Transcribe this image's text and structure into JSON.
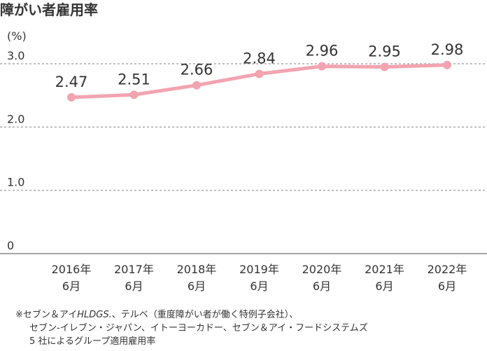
{
  "chart_data": {
    "type": "line",
    "title": "障がい者雇用率",
    "ylabel": "(%)",
    "ylim": [
      0,
      3.0
    ],
    "yticks": [
      {
        "value": 0,
        "label": "0"
      },
      {
        "value": 1.0,
        "label": "1.0"
      },
      {
        "value": 2.0,
        "label": "2.0"
      },
      {
        "value": 3.0,
        "label": "3.0"
      }
    ],
    "categories": [
      {
        "year": "2016年",
        "month": "6月"
      },
      {
        "year": "2017年",
        "month": "6月"
      },
      {
        "year": "2018年",
        "month": "6月"
      },
      {
        "year": "2019年",
        "month": "6月"
      },
      {
        "year": "2020年",
        "month": "6月"
      },
      {
        "year": "2021年",
        "month": "6月"
      },
      {
        "year": "2022年",
        "month": "6月"
      }
    ],
    "series": [
      {
        "name": "障がい者雇用率",
        "values": [
          2.47,
          2.51,
          2.66,
          2.84,
          2.96,
          2.95,
          2.98
        ],
        "labels": [
          "2.47",
          "2.51",
          "2.66",
          "2.84",
          "2.96",
          "2.95",
          "2.98"
        ],
        "color": "#f2a4b0"
      }
    ],
    "grid": true,
    "legend": "none"
  },
  "footnote": {
    "line1_prefix": "※セブン＆アイ",
    "line1_italic": "HLDGS.",
    "line1_suffix": "、テルベ（重度障がい者が働く特例子会社）、",
    "line2": "セブン‐イレブン・ジャパン、イトーヨーカドー、セブン＆アイ・フードシステムズ",
    "line3": "5 社によるグループ適用雇用率"
  },
  "colors": {
    "line": "#f2a4b0",
    "grid": "#aaaaaa",
    "axis": "#888888",
    "text": "#333333"
  }
}
